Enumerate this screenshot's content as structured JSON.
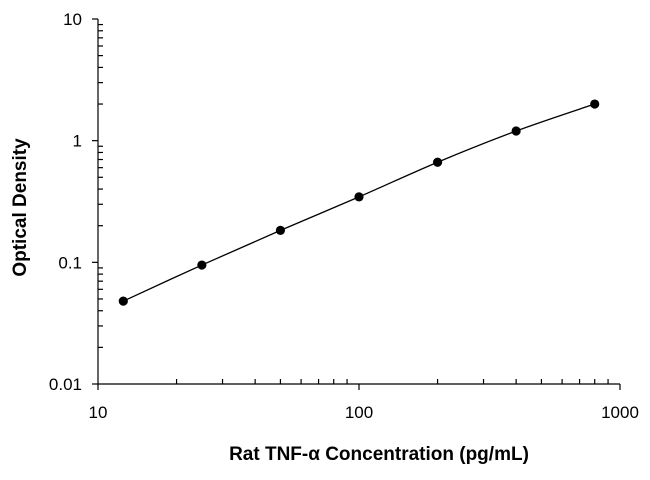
{
  "chart_data": {
    "type": "scatter",
    "xlabel": "Rat TNF-α Concentration (pg/mL)",
    "ylabel": "Optical Density",
    "xscale": "log",
    "yscale": "log",
    "xlim": [
      10,
      1000
    ],
    "ylim": [
      0.01,
      10
    ],
    "x_tick_labels": [
      "10",
      "100",
      "1000"
    ],
    "y_tick_labels": [
      "0.01",
      "0.1",
      "1",
      "10"
    ],
    "grid": false,
    "legend": "none",
    "fit_line": true,
    "series": [
      {
        "x": [
          12.5,
          25,
          50,
          100,
          200,
          400,
          800
        ],
        "y": [
          0.048,
          0.095,
          0.183,
          0.345,
          0.665,
          1.2,
          2.0
        ]
      }
    ],
    "colors": {
      "points": "#000000",
      "line": "#000000",
      "axes": "#000000"
    }
  }
}
